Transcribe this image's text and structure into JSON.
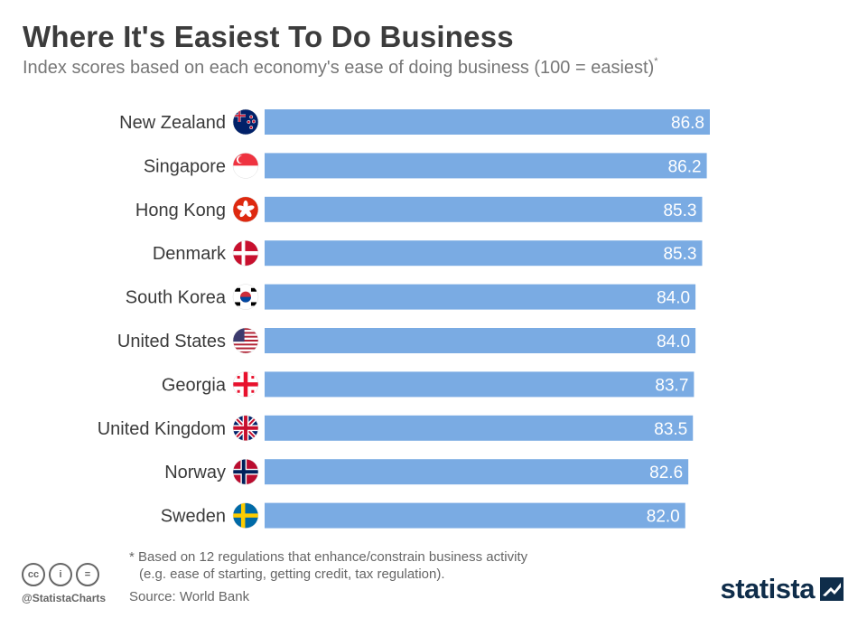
{
  "header": {
    "title": "Where It's Easiest To Do Business",
    "subtitle": "Index scores based on each economy's ease of doing business (100 = easiest)",
    "subtitle_marker": "*"
  },
  "chart_data": {
    "type": "bar",
    "orientation": "horizontal",
    "categories": [
      "New Zealand",
      "Singapore",
      "Hong Kong",
      "Denmark",
      "South Korea",
      "United States",
      "Georgia",
      "United Kingdom",
      "Norway",
      "Sweden"
    ],
    "values": [
      86.8,
      86.2,
      85.3,
      85.3,
      84.0,
      84.0,
      83.7,
      83.5,
      82.6,
      82.0
    ],
    "value_labels": [
      "86.8",
      "86.2",
      "85.3",
      "85.3",
      "84.0",
      "84.0",
      "83.7",
      "83.5",
      "82.6",
      "82.0"
    ],
    "icons": [
      "new-zealand-flag-icon",
      "singapore-flag-icon",
      "hong-kong-flag-icon",
      "denmark-flag-icon",
      "south-korea-flag-icon",
      "united-states-flag-icon",
      "georgia-flag-icon",
      "united-kingdom-flag-icon",
      "norway-flag-icon",
      "sweden-flag-icon"
    ],
    "bar_color": "#7aabe3",
    "grid": false
  },
  "footer": {
    "note_line1": "* Based on 12 regulations that enhance/constrain business activity",
    "note_line2": "(e.g. ease of starting, getting credit, tax regulation).",
    "source": "Source: World Bank",
    "handle": "@StatistaCharts",
    "brand": "statista",
    "cc_icons": [
      "cc",
      "i",
      "="
    ]
  }
}
